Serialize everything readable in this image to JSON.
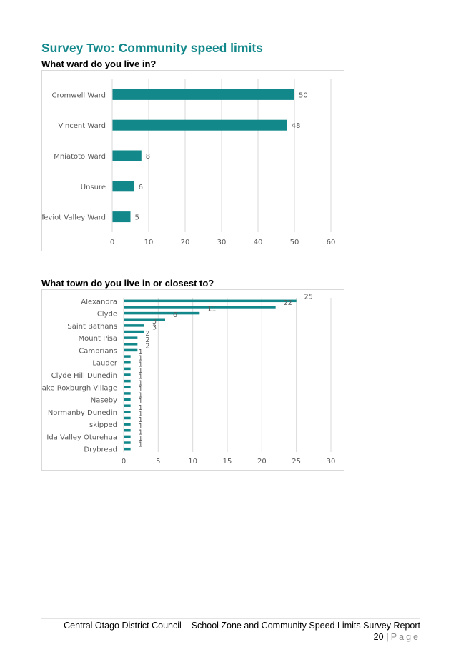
{
  "section_title": "Survey Two: Community speed limits",
  "colors": {
    "accent": "#13888a",
    "bar": "#13888a",
    "grid": "#d9d9d9",
    "text": "#595959"
  },
  "chart_data": [
    {
      "type": "bar",
      "orientation": "horizontal",
      "title": "What ward do you live in?",
      "categories": [
        "Cromwell Ward",
        "Vincent Ward",
        "Mniatoto Ward",
        "Unsure",
        "Teviot Valley Ward"
      ],
      "values": [
        50,
        48,
        8,
        6,
        5
      ],
      "xlim": [
        0,
        60
      ],
      "xticks": [
        0,
        10,
        20,
        30,
        40,
        50,
        60
      ],
      "grid": true,
      "data_labels": true
    },
    {
      "type": "bar",
      "orientation": "horizontal",
      "title": "What town do you live in or closest to?",
      "categories": [
        "Alexandra",
        "",
        "Clyde",
        "",
        "Saint Bathans",
        "",
        "Mount Pisa",
        "",
        "Cambrians",
        "",
        "Lauder",
        "",
        "Clyde Hill Dunedin",
        "",
        "Lake Roxburgh Village",
        "",
        "Naseby",
        "",
        "Normanby Dunedin",
        "",
        "skipped",
        "",
        "Ida Valley Oturehua",
        "",
        "Drybread"
      ],
      "values": [
        25,
        22,
        11,
        6,
        3,
        3,
        2,
        2,
        2,
        1,
        1,
        1,
        1,
        1,
        1,
        1,
        1,
        1,
        1,
        1,
        1,
        1,
        1,
        1,
        1
      ],
      "xlim": [
        0,
        30
      ],
      "xticks": [
        0,
        5,
        10,
        15,
        20,
        25,
        30
      ],
      "grid": true,
      "data_labels": true
    }
  ],
  "footer": {
    "report_title": "Central Otago District Council – School Zone and Community Speed Limits Survey Report",
    "page_number": "20",
    "page_separator": "|",
    "page_word": "Page"
  }
}
